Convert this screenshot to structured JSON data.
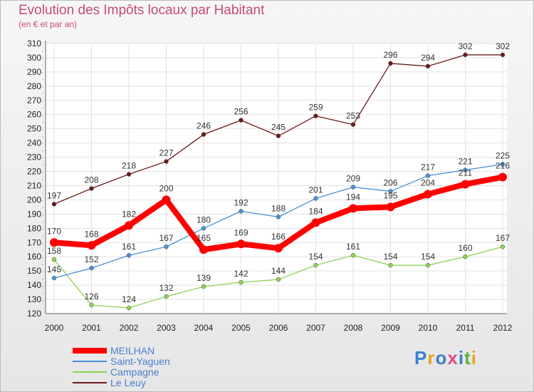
{
  "title": "Evolution des Impôts locaux par Habitant",
  "subtitle": "(en € et par an)",
  "logo": {
    "text": "Proxiti",
    "colors": [
      "#3a7fd0",
      "#f0a020",
      "#3a7fd0",
      "#e05080",
      "#3a7fd0",
      "#60b040",
      "#f0a020"
    ]
  },
  "chart_data": {
    "type": "line",
    "x": [
      2000,
      2001,
      2002,
      2003,
      2004,
      2005,
      2006,
      2007,
      2008,
      2009,
      2010,
      2011,
      2012
    ],
    "ylim": [
      120,
      310
    ],
    "yticks": [
      120,
      130,
      140,
      150,
      160,
      170,
      180,
      190,
      200,
      210,
      220,
      230,
      240,
      250,
      260,
      270,
      280,
      290,
      300,
      310
    ],
    "grid": true,
    "legend_position": "bottom-left",
    "series": [
      {
        "name": "MEILHAN",
        "color": "#ff0000",
        "values": [
          170,
          168,
          182,
          200,
          165,
          169,
          166,
          184,
          194,
          195,
          204,
          211,
          216
        ]
      },
      {
        "name": "Saint-Yaguen",
        "color": "#4a90d9",
        "values": [
          145,
          152,
          161,
          167,
          180,
          192,
          188,
          201,
          209,
          206,
          217,
          221,
          225
        ]
      },
      {
        "name": "Campagne",
        "color": "#8ed156",
        "values": [
          158,
          126,
          124,
          132,
          139,
          142,
          144,
          154,
          161,
          154,
          154,
          160,
          167
        ]
      },
      {
        "name": "Le Leuy",
        "color": "#6b1a1a",
        "values": [
          197,
          208,
          218,
          227,
          246,
          256,
          245,
          259,
          253,
          296,
          294,
          302,
          302
        ]
      }
    ]
  }
}
